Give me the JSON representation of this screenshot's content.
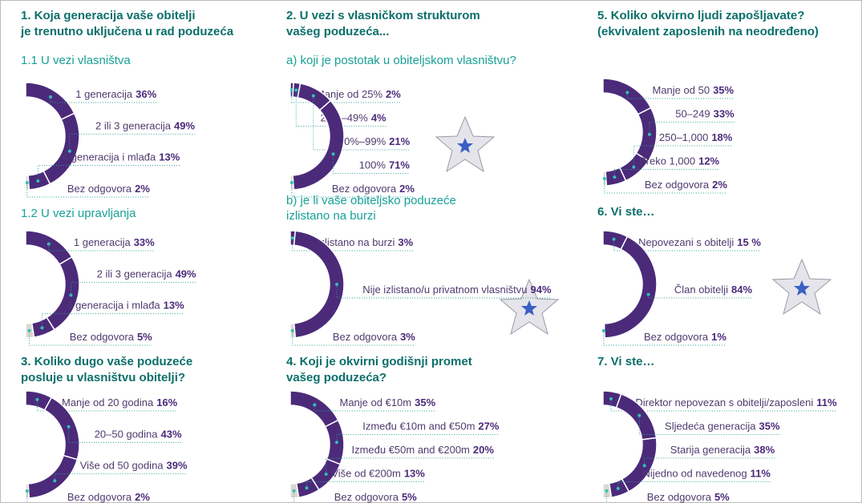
{
  "chart_data": [
    {
      "type": "semidonut",
      "title": [
        "1. Koja generacija vaše obitelji",
        "je trenutno uključena u rad poduzeća"
      ],
      "subtitle": [
        "1.1 U vezi vlasništva"
      ],
      "categories": [
        "1 generacija",
        "2 ili 3 generacija",
        "4 generacija i mlađa",
        "Bez odgovora"
      ],
      "values": [
        36,
        49,
        13,
        2
      ],
      "value_labels": [
        "36%",
        "49%",
        "13%",
        "2%"
      ],
      "colors": [
        "#4b2a7a",
        "#4b2a7a",
        "#4b2a7a",
        "#dcd7cf"
      ]
    },
    {
      "type": "semidonut",
      "subtitle": [
        "1.2 U vezi upravljanja"
      ],
      "categories": [
        "1 generacija",
        "2 ili 3 generacija",
        "4 generacija i mlađa",
        "Bez odgovora"
      ],
      "values": [
        33,
        49,
        13,
        5
      ],
      "value_labels": [
        "33%",
        "49%",
        "13%",
        "5%"
      ],
      "colors": [
        "#4b2a7a",
        "#4b2a7a",
        "#4b2a7a",
        "#dcd7cf"
      ]
    },
    {
      "type": "semidonut",
      "title": [
        "2. U vezi s vlasničkom strukturom",
        "vašeg poduzeća..."
      ],
      "subtitle": [
        "a) koji je postotak u obiteljskom vlasništvu?"
      ],
      "categories": [
        "Manje od 25%",
        "25%–49%",
        "50%–99%",
        "100%",
        "Bez odgovora"
      ],
      "values": [
        2,
        4,
        21,
        71,
        2
      ],
      "value_labels": [
        "2%",
        "4%",
        "21%",
        "71%",
        "2%"
      ],
      "colors": [
        "#4b2a7a",
        "#4b2a7a",
        "#4b2a7a",
        "#4b2a7a",
        "#dcd7cf"
      ]
    },
    {
      "type": "semidonut",
      "subtitle": [
        "b) je li vaše obiteljsko poduzeće",
        "izlistano na burzi"
      ],
      "categories": [
        "Izlistano na burzi",
        "Nije izlistano/u privatnom vlasništvu",
        "Bez odgovora"
      ],
      "values": [
        3,
        94,
        3
      ],
      "value_labels": [
        "3%",
        "94%",
        "3%"
      ],
      "colors": [
        "#4b2a7a",
        "#4b2a7a",
        "#dcd7cf"
      ]
    },
    {
      "type": "semidonut",
      "title": [
        "3. Koliko dugo vaše poduzeće",
        "posluje u vlasništvu obitelji?"
      ],
      "categories": [
        "Manje od 20 godina",
        "20–50 godina",
        "Više od 50 godina",
        "Bez odgovora"
      ],
      "values": [
        16,
        43,
        39,
        2
      ],
      "value_labels": [
        "16%",
        "43%",
        "39%",
        "2%"
      ],
      "colors": [
        "#4b2a7a",
        "#4b2a7a",
        "#4b2a7a",
        "#dcd7cf"
      ]
    },
    {
      "type": "semidonut",
      "title": [
        "4. Koji je okvirni godišnji promet",
        "vašeg poduzeća?"
      ],
      "categories": [
        "Manje od €10m",
        "Između €10m and €50m",
        "Između €50m and €200m",
        "Više od €200m",
        "Bez odgovora"
      ],
      "values": [
        35,
        27,
        20,
        13,
        5
      ],
      "value_labels": [
        "35%",
        "27%",
        "20%",
        "13%",
        "5%"
      ],
      "colors": [
        "#4b2a7a",
        "#4b2a7a",
        "#4b2a7a",
        "#4b2a7a",
        "#dcd7cf"
      ]
    },
    {
      "type": "semidonut",
      "title": [
        "5. Koliko okvirno ljudi zapošljavate?",
        "(ekvivalent zaposlenih na neodređeno)"
      ],
      "categories": [
        "Manje od 50",
        "50–249",
        "250–1,000",
        "Preko 1,000",
        "Bez odgovora"
      ],
      "values": [
        35,
        33,
        18,
        12,
        2
      ],
      "value_labels": [
        "35%",
        "33%",
        "18%",
        "12%",
        "2%"
      ],
      "colors": [
        "#4b2a7a",
        "#4b2a7a",
        "#4b2a7a",
        "#4b2a7a",
        "#dcd7cf"
      ]
    },
    {
      "type": "semidonut",
      "title": [
        "6. Vi ste…"
      ],
      "categories": [
        "Nepovezani s obitelji",
        "Član obitelji",
        "Bez odgovora"
      ],
      "values": [
        15,
        84,
        1
      ],
      "value_labels": [
        "15 %",
        "84%",
        "1%"
      ],
      "colors": [
        "#4b2a7a",
        "#4b2a7a",
        "#dcd7cf"
      ]
    },
    {
      "type": "semidonut",
      "title": [
        "7. Vi ste…"
      ],
      "categories": [
        "Direktor nepovezan s obitelji/zaposleni",
        "Sljedeća generacija",
        "Starija generacija",
        "Nijedno od navedenog",
        "Bez odgovora"
      ],
      "values": [
        11,
        35,
        38,
        11,
        5
      ],
      "value_labels": [
        "11%",
        "35%",
        "38%",
        "11%",
        "5%"
      ],
      "colors": [
        "#4b2a7a",
        "#4b2a7a",
        "#4b2a7a",
        "#4b2a7a",
        "#dcd7cf"
      ]
    }
  ]
}
